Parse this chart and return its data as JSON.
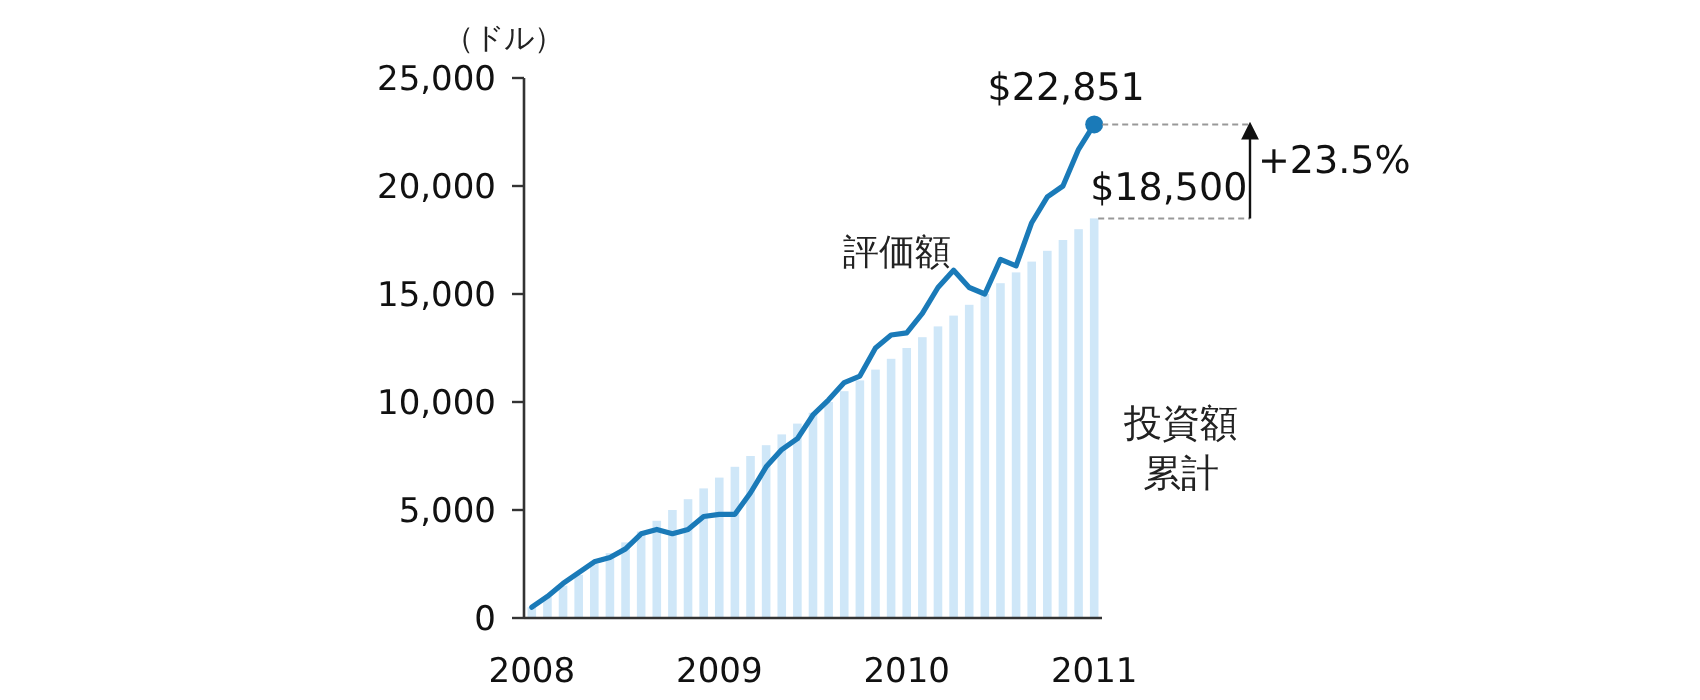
{
  "chart_data": {
    "type": "bar",
    "ylabel": "（ドル）",
    "categories": [
      "2008",
      null,
      null,
      null,
      null,
      null,
      null,
      null,
      null,
      null,
      null,
      null,
      "2009",
      null,
      null,
      null,
      null,
      null,
      null,
      null,
      null,
      null,
      null,
      null,
      "2010",
      null,
      null,
      null,
      null,
      null,
      null,
      null,
      null,
      null,
      null,
      null,
      "2011"
    ],
    "ylim": [
      0,
      25000
    ],
    "yticks": [
      0,
      {
        "value": 5000,
        "label": "5,000"
      },
      {
        "value": 10000,
        "label": "10,000"
      },
      {
        "value": 15000,
        "label": "15,000"
      },
      {
        "value": 20000,
        "label": "20,000"
      },
      {
        "value": 25000,
        "label": "25,000"
      }
    ],
    "series": [
      {
        "name": "投資額累計",
        "color": "#cfe7f8",
        "values": [
          500,
          1000,
          1500,
          2000,
          2500,
          3000,
          3500,
          4000,
          4500,
          5000,
          5500,
          6000,
          6500,
          7000,
          7500,
          8000,
          8500,
          9000,
          9500,
          10000,
          10500,
          11000,
          11500,
          12000,
          12500,
          13000,
          13500,
          14000,
          14500,
          15000,
          15500,
          16000,
          16500,
          17000,
          17500,
          18000,
          18500
        ],
        "value_labels": [
          null,
          null,
          null,
          null,
          null,
          null,
          null,
          null,
          null,
          null,
          null,
          null,
          null,
          null,
          null,
          null,
          null,
          null,
          null,
          null,
          null,
          null,
          null,
          null,
          null,
          null,
          null,
          null,
          null,
          null,
          null,
          null,
          null,
          null,
          null,
          null,
          "$18,500"
        ]
      },
      {
        "name": "評価額",
        "type": "line",
        "color": "#1a7ab8",
        "values": [
          500,
          1000,
          1600,
          2100,
          2600,
          2800,
          3200,
          3900,
          4100,
          3900,
          4100,
          4700,
          4800,
          4800,
          5800,
          7000,
          7800,
          8300,
          9400,
          10100,
          10900,
          11200,
          12500,
          13100,
          13200,
          14100,
          15300,
          16100,
          15300,
          15000,
          16600,
          16300,
          18300,
          19500,
          20000,
          21700,
          22851
        ],
        "value_labels": [
          null,
          null,
          null,
          null,
          null,
          null,
          null,
          null,
          null,
          null,
          null,
          null,
          null,
          null,
          null,
          null,
          null,
          null,
          null,
          null,
          null,
          null,
          null,
          null,
          null,
          null,
          null,
          null,
          null,
          null,
          null,
          null,
          null,
          null,
          null,
          null,
          "$22,851"
        ]
      }
    ],
    "annotations": [
      {
        "text": "+23.5%",
        "x": "2011",
        "y": 22851
      }
    ],
    "grid": false,
    "legend": false
  }
}
